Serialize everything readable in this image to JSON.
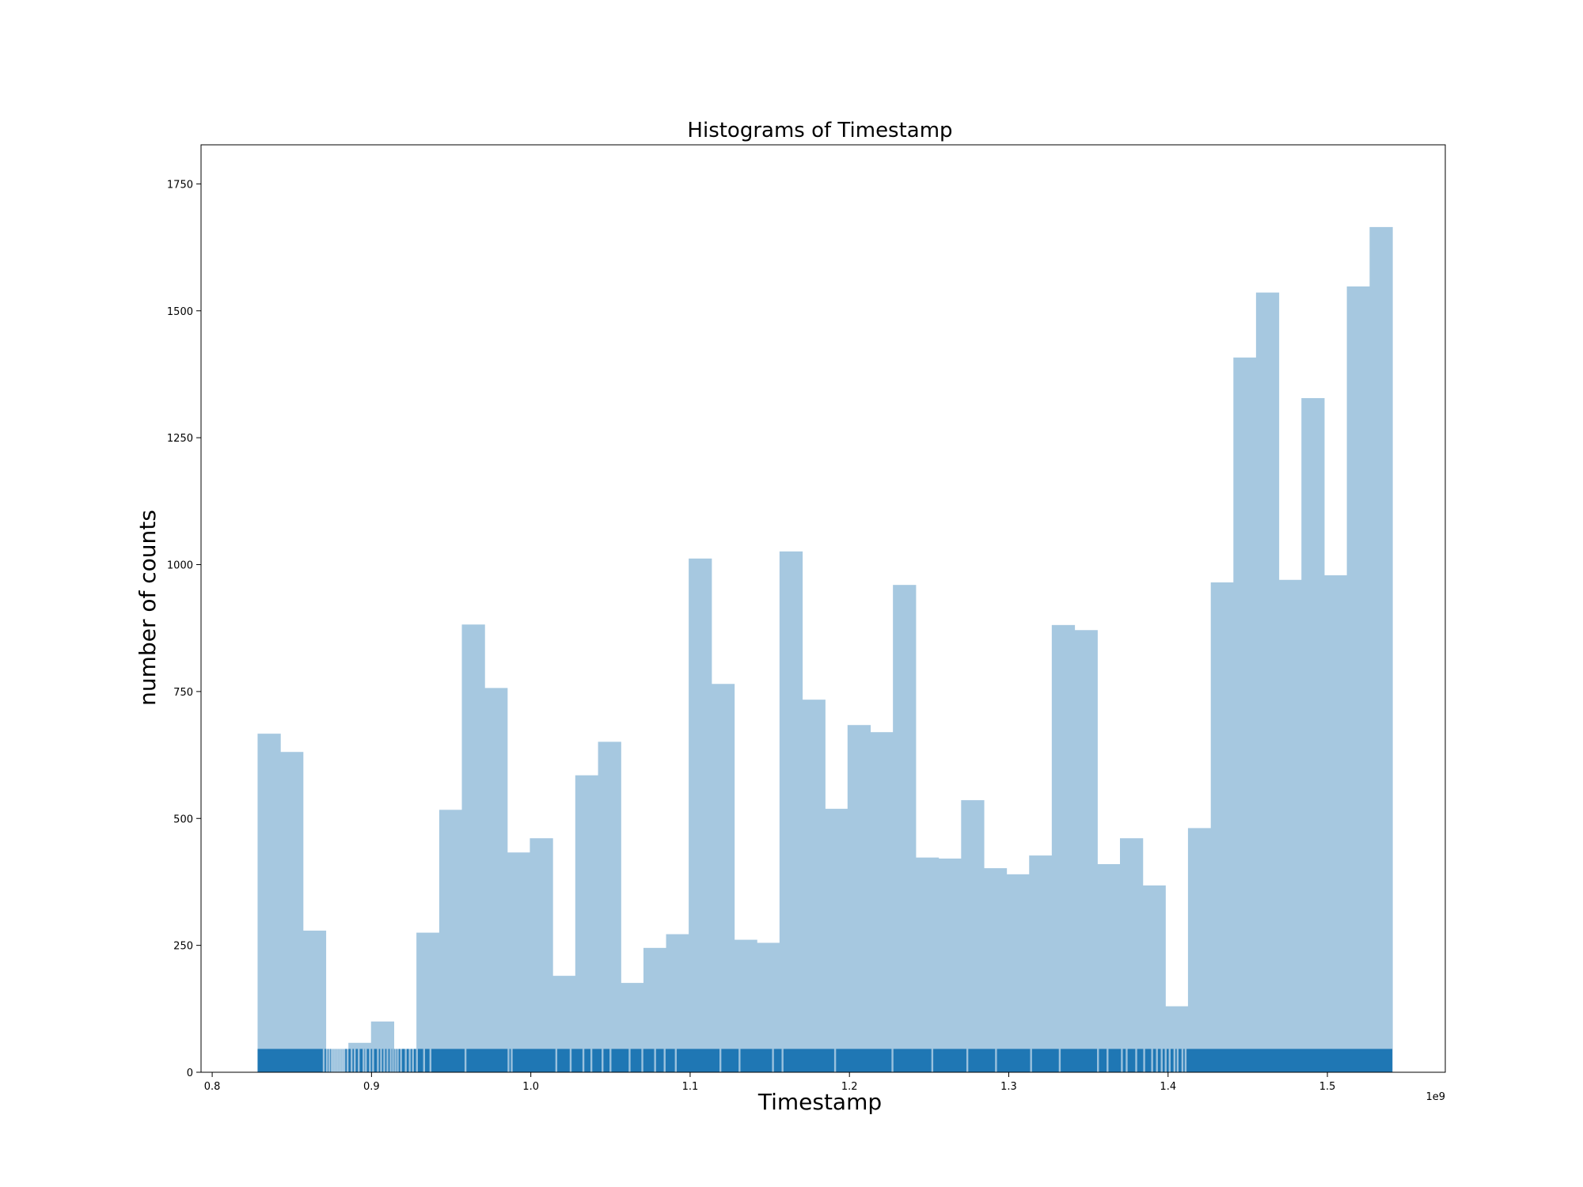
{
  "chart_data": {
    "type": "bar",
    "title": "Histograms of Timestamp",
    "xlabel": "Timestamp",
    "ylabel": "number of counts",
    "x_offset_label": "1e9",
    "x_unit_multiplier": 1000000000,
    "xlim": [
      0.793,
      1.574
    ],
    "ylim": [
      0,
      1827
    ],
    "grid": false,
    "legend": "none",
    "bar_color": "#a6c8e0",
    "rug_color": "#1f77b4",
    "rug_height_value": 46,
    "x_ticks": [
      0.8,
      0.9,
      1.0,
      1.1,
      1.2,
      1.3,
      1.4,
      1.5
    ],
    "x_tick_labels": [
      "0.8",
      "0.9",
      "1.0",
      "1.1",
      "1.2",
      "1.3",
      "1.4",
      "1.5"
    ],
    "y_ticks": [
      0,
      250,
      500,
      750,
      1000,
      1250,
      1500,
      1750
    ],
    "y_tick_labels": [
      "0",
      "250",
      "500",
      "750",
      "1000",
      "1250",
      "1500",
      "1750"
    ],
    "bins": {
      "left_edges": [
        0.8285,
        0.8427,
        0.857,
        0.8712,
        0.8855,
        0.8997,
        0.914,
        0.9282,
        0.9425,
        0.9567,
        0.9709,
        0.9852,
        0.9994,
        1.0137,
        1.0279,
        1.0422,
        1.0564,
        1.0707,
        1.0849,
        1.0991,
        1.1134,
        1.1276,
        1.1419,
        1.1561,
        1.1704,
        1.1846,
        1.1988,
        1.2131,
        1.2273,
        1.2416,
        1.2558,
        1.2701,
        1.2843,
        1.2986,
        1.3128,
        1.327,
        1.3413,
        1.3555,
        1.3698,
        1.384,
        1.3983,
        1.4125,
        1.4268,
        1.441,
        1.4552,
        1.4695,
        1.4837,
        1.498,
        1.5122,
        1.5265
      ],
      "width": 0.01424,
      "counts": [
        667,
        631,
        279,
        33,
        58,
        100,
        33,
        275,
        517,
        882,
        757,
        433,
        461,
        190,
        585,
        651,
        176,
        245,
        272,
        1012,
        765,
        261,
        255,
        1026,
        734,
        519,
        684,
        670,
        960,
        423,
        421,
        536,
        402,
        390,
        427,
        881,
        871,
        410,
        461,
        368,
        130,
        481,
        965,
        1408,
        1536,
        970,
        1328,
        979,
        1548,
        1665
      ]
    },
    "rug_gaps": [
      0.87,
      0.872,
      0.8735,
      0.875,
      0.876,
      0.877,
      0.878,
      0.879,
      0.88,
      0.881,
      0.882,
      0.883,
      0.885,
      0.8875,
      0.8895,
      0.892,
      0.895,
      0.8965,
      0.899,
      0.901,
      0.904,
      0.906,
      0.908,
      0.91,
      0.912,
      0.9135,
      0.915,
      0.9165,
      0.9185,
      0.9215,
      0.924,
      0.926,
      0.9285,
      0.933,
      0.937,
      0.959,
      0.986,
      0.988,
      1.016,
      1.025,
      1.033,
      1.038,
      1.045,
      1.05,
      1.062,
      1.07,
      1.078,
      1.084,
      1.091,
      1.119,
      1.131,
      1.152,
      1.158,
      1.191,
      1.227,
      1.252,
      1.274,
      1.292,
      1.314,
      1.332,
      1.356,
      1.362,
      1.371,
      1.374,
      1.38,
      1.385,
      1.39,
      1.393,
      1.396,
      1.3985,
      1.401,
      1.404,
      1.406,
      1.409,
      1.411
    ]
  }
}
